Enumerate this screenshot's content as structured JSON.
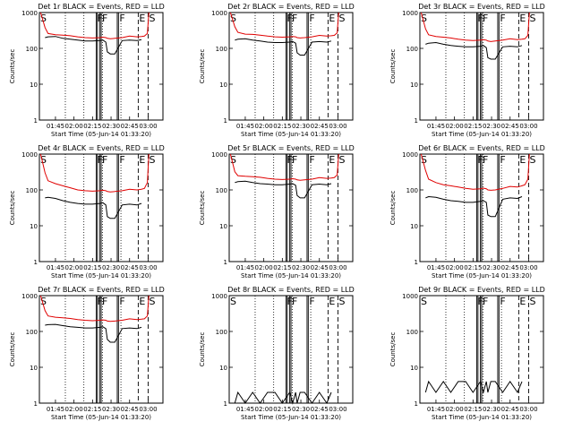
{
  "window": {
    "background": "#ffffff"
  },
  "colors": {
    "events": "#000000",
    "lld": "#e00000",
    "frame": "#000000"
  },
  "chart_data": [
    {
      "type": "line",
      "title": "Det 1r BLACK = Events, RED = LLD",
      "xlabel": "Start Time (05-Jun-14 01:33:20)",
      "ylabel": "Counts/sec",
      "x_ticks": [
        "01:45",
        "02:00",
        "02:15",
        "02:30",
        "02:45",
        "03:00"
      ],
      "y_ticks": [
        "1",
        "10",
        "100",
        "1000"
      ],
      "ylim": [
        1,
        1000
      ],
      "y_scale": "log",
      "x": [
        0,
        3,
        5,
        10,
        15,
        20,
        25,
        30,
        35,
        40,
        42,
        44,
        45,
        47,
        50,
        55,
        60,
        65,
        68,
        70,
        72,
        73
      ],
      "series": [
        {
          "name": "Events",
          "color": "#000000",
          "values": [
            null,
            200,
            210,
            215,
            190,
            180,
            170,
            160,
            160,
            165,
            170,
            150,
            80,
            70,
            70,
            165,
            170,
            165,
            175,
            null,
            null,
            null
          ]
        },
        {
          "name": "LLD",
          "color": "#e00000",
          "values": [
            1000,
            380,
            260,
            240,
            235,
            225,
            210,
            200,
            195,
            200,
            205,
            200,
            190,
            185,
            190,
            200,
            220,
            210,
            215,
            220,
            260,
            1000
          ]
        }
      ],
      "markers": [
        {
          "label": "S",
          "style": "dashed"
        },
        {
          "label": "F",
          "style": "solid"
        },
        {
          "label": "F",
          "style": "solid"
        },
        {
          "label": "F",
          "style": "solid"
        },
        {
          "label": "E",
          "style": "dashed"
        },
        {
          "label": "S",
          "style": "dashed"
        }
      ]
    },
    {
      "type": "line",
      "title": "Det 2r BLACK = Events, RED = LLD",
      "xlabel": "Start Time (05-Jun-14 01:33:20)",
      "ylabel": "Counts/sec",
      "x_ticks": [
        "01:45",
        "02:00",
        "02:15",
        "02:30",
        "02:45",
        "03:00"
      ],
      "y_ticks": [
        "1",
        "10",
        "100",
        "1000"
      ],
      "ylim": [
        1,
        1000
      ],
      "y_scale": "log",
      "x": [
        0,
        3,
        5,
        10,
        15,
        20,
        25,
        30,
        35,
        40,
        42,
        44,
        45,
        47,
        50,
        55,
        60,
        65,
        68,
        70,
        72,
        73
      ],
      "series": [
        {
          "name": "Events",
          "color": "#000000",
          "values": [
            null,
            170,
            180,
            185,
            170,
            160,
            150,
            145,
            145,
            150,
            155,
            140,
            75,
            65,
            65,
            150,
            155,
            150,
            160,
            null,
            null,
            null
          ]
        },
        {
          "name": "LLD",
          "color": "#e00000",
          "values": [
            1000,
            400,
            280,
            250,
            245,
            235,
            220,
            210,
            205,
            210,
            215,
            210,
            200,
            195,
            200,
            210,
            230,
            220,
            225,
            230,
            270,
            1000
          ]
        }
      ],
      "markers": [
        {
          "label": "S",
          "style": "dashed"
        },
        {
          "label": "F",
          "style": "solid"
        },
        {
          "label": "F",
          "style": "solid"
        },
        {
          "label": "F",
          "style": "solid"
        },
        {
          "label": "E",
          "style": "dashed"
        },
        {
          "label": "S",
          "style": "dashed"
        }
      ]
    },
    {
      "type": "line",
      "title": "Det 3r BLACK = Events, RED = LLD",
      "xlabel": "Start Time (05-Jun-14 01:33:20)",
      "ylabel": "Counts/sec",
      "x_ticks": [
        "01:45",
        "02:00",
        "02:15",
        "02:30",
        "02:45",
        "03:00"
      ],
      "y_ticks": [
        "1",
        "10",
        "100",
        "1000"
      ],
      "ylim": [
        1,
        1000
      ],
      "y_scale": "log",
      "x": [
        0,
        3,
        5,
        10,
        15,
        20,
        25,
        30,
        35,
        40,
        42,
        44,
        45,
        47,
        50,
        55,
        60,
        65,
        68,
        70,
        72,
        73
      ],
      "series": [
        {
          "name": "Events",
          "color": "#000000",
          "values": [
            null,
            130,
            140,
            145,
            130,
            120,
            115,
            110,
            110,
            115,
            120,
            105,
            55,
            50,
            50,
            110,
            115,
            110,
            120,
            null,
            null,
            null
          ]
        },
        {
          "name": "LLD",
          "color": "#e00000",
          "values": [
            1000,
            350,
            240,
            215,
            205,
            195,
            180,
            170,
            165,
            170,
            175,
            170,
            160,
            155,
            160,
            170,
            185,
            175,
            180,
            185,
            230,
            1000
          ]
        }
      ],
      "markers": [
        {
          "label": "S",
          "style": "dashed"
        },
        {
          "label": "F",
          "style": "solid"
        },
        {
          "label": "F",
          "style": "solid"
        },
        {
          "label": "F",
          "style": "solid"
        },
        {
          "label": "E",
          "style": "dashed"
        },
        {
          "label": "S",
          "style": "dashed"
        }
      ]
    },
    {
      "type": "line",
      "title": "Det 4r BLACK = Events, RED = LLD",
      "xlabel": "Start Time (05-Jun-14 01:33:20)",
      "ylabel": "Counts/sec",
      "x_ticks": [
        "01:45",
        "02:00",
        "02:15",
        "02:30",
        "02:45",
        "03:00"
      ],
      "y_ticks": [
        "1",
        "10",
        "100",
        "1000"
      ],
      "ylim": [
        1,
        1000
      ],
      "y_scale": "log",
      "x": [
        0,
        3,
        5,
        10,
        15,
        20,
        25,
        30,
        35,
        40,
        42,
        44,
        45,
        47,
        50,
        55,
        60,
        65,
        68,
        70,
        72,
        73
      ],
      "series": [
        {
          "name": "Events",
          "color": "#000000",
          "values": [
            null,
            60,
            62,
            58,
            50,
            45,
            42,
            40,
            40,
            42,
            44,
            38,
            18,
            16,
            16,
            38,
            40,
            38,
            42,
            null,
            null,
            null
          ]
        },
        {
          "name": "LLD",
          "color": "#e00000",
          "values": [
            1000,
            300,
            180,
            150,
            130,
            115,
            100,
            95,
            92,
            95,
            98,
            95,
            90,
            88,
            90,
            95,
            105,
            100,
            105,
            110,
            160,
            1000
          ]
        }
      ],
      "markers": [
        {
          "label": "S",
          "style": "dashed"
        },
        {
          "label": "F",
          "style": "solid"
        },
        {
          "label": "F",
          "style": "solid"
        },
        {
          "label": "F",
          "style": "solid"
        },
        {
          "label": "E",
          "style": "dashed"
        },
        {
          "label": "S",
          "style": "dashed"
        }
      ]
    },
    {
      "type": "line",
      "title": "Det 5r BLACK = Events, RED = LLD",
      "xlabel": "Start Time (05-Jun-14 01:33:20)",
      "ylabel": "Counts/sec",
      "x_ticks": [
        "01:45",
        "02:00",
        "02:15",
        "02:30",
        "02:45",
        "03:00"
      ],
      "y_ticks": [
        "1",
        "10",
        "100",
        "1000"
      ],
      "ylim": [
        1,
        1000
      ],
      "y_scale": "log",
      "x": [
        0,
        3,
        5,
        10,
        15,
        20,
        25,
        30,
        35,
        40,
        42,
        44,
        45,
        47,
        50,
        55,
        60,
        65,
        68,
        70,
        72,
        73
      ],
      "series": [
        {
          "name": "Events",
          "color": "#000000",
          "values": [
            null,
            160,
            170,
            175,
            160,
            150,
            145,
            140,
            140,
            145,
            150,
            135,
            70,
            60,
            60,
            140,
            145,
            140,
            150,
            null,
            null,
            null
          ]
        },
        {
          "name": "LLD",
          "color": "#e00000",
          "values": [
            1000,
            320,
            250,
            240,
            235,
            225,
            210,
            200,
            195,
            200,
            205,
            200,
            190,
            185,
            190,
            200,
            220,
            210,
            215,
            220,
            260,
            1000
          ]
        }
      ],
      "markers": [
        {
          "label": "S",
          "style": "dashed"
        },
        {
          "label": "F",
          "style": "solid"
        },
        {
          "label": "F",
          "style": "solid"
        },
        {
          "label": "F",
          "style": "solid"
        },
        {
          "label": "E",
          "style": "dashed"
        },
        {
          "label": "S",
          "style": "dashed"
        }
      ]
    },
    {
      "type": "line",
      "title": "Det 6r BLACK = Events, RED = LLD",
      "xlabel": "Start Time (05-Jun-14 01:33:20)",
      "ylabel": "Counts/sec",
      "x_ticks": [
        "01:45",
        "02:00",
        "02:15",
        "02:30",
        "02:45",
        "03:00"
      ],
      "y_ticks": [
        "1",
        "10",
        "100",
        "1000"
      ],
      "ylim": [
        1,
        1000
      ],
      "y_scale": "log",
      "x": [
        0,
        3,
        5,
        10,
        15,
        20,
        25,
        30,
        35,
        40,
        42,
        44,
        45,
        47,
        50,
        55,
        60,
        65,
        68,
        70,
        72,
        73
      ],
      "series": [
        {
          "name": "Events",
          "color": "#000000",
          "values": [
            null,
            60,
            65,
            62,
            55,
            50,
            48,
            45,
            45,
            48,
            50,
            45,
            20,
            18,
            18,
            55,
            60,
            58,
            65,
            null,
            null,
            null
          ]
        },
        {
          "name": "LLD",
          "color": "#e00000",
          "values": [
            1000,
            350,
            200,
            160,
            140,
            130,
            120,
            110,
            105,
            108,
            112,
            108,
            100,
            98,
            100,
            110,
            125,
            120,
            130,
            140,
            200,
            1000
          ]
        }
      ],
      "markers": [
        {
          "label": "S",
          "style": "dashed"
        },
        {
          "label": "F",
          "style": "solid"
        },
        {
          "label": "F",
          "style": "solid"
        },
        {
          "label": "F",
          "style": "solid"
        },
        {
          "label": "E",
          "style": "dashed"
        },
        {
          "label": "S",
          "style": "dashed"
        }
      ]
    },
    {
      "type": "line",
      "title": "Det 7r BLACK = Events, RED = LLD",
      "xlabel": "Start Time (05-Jun-14 01:33:20)",
      "ylabel": "Counts/sec",
      "x_ticks": [
        "01:45",
        "02:00",
        "02:15",
        "02:30",
        "02:45",
        "03:00"
      ],
      "y_ticks": [
        "1",
        "10",
        "100",
        "1000"
      ],
      "ylim": [
        1,
        1000
      ],
      "y_scale": "log",
      "x": [
        0,
        3,
        5,
        10,
        15,
        20,
        25,
        30,
        35,
        40,
        42,
        44,
        45,
        47,
        50,
        55,
        60,
        65,
        68,
        70,
        72,
        73
      ],
      "series": [
        {
          "name": "Events",
          "color": "#000000",
          "values": [
            null,
            150,
            155,
            158,
            145,
            135,
            130,
            125,
            125,
            130,
            135,
            120,
            60,
            50,
            50,
            120,
            125,
            120,
            130,
            null,
            null,
            null
          ]
        },
        {
          "name": "LLD",
          "color": "#e00000",
          "values": [
            1000,
            380,
            270,
            250,
            240,
            230,
            215,
            205,
            200,
            205,
            210,
            205,
            195,
            190,
            195,
            205,
            225,
            215,
            220,
            225,
            270,
            1000
          ]
        }
      ],
      "markers": [
        {
          "label": "S",
          "style": "dashed"
        },
        {
          "label": "F",
          "style": "solid"
        },
        {
          "label": "F",
          "style": "solid"
        },
        {
          "label": "F",
          "style": "solid"
        },
        {
          "label": "E",
          "style": "dashed"
        },
        {
          "label": "S",
          "style": "dashed"
        }
      ]
    },
    {
      "type": "line",
      "title": "Det 8r BLACK = Events, RED = LLD",
      "xlabel": "Start Time (05-Jun-14 01:33:20)",
      "ylabel": "Counts/sec",
      "x_ticks": [
        "01:45",
        "02:00",
        "02:15",
        "02:30",
        "02:45",
        "03:00"
      ],
      "y_ticks": [
        "1",
        "10",
        "100",
        "1000"
      ],
      "ylim": [
        1,
        1000
      ],
      "y_scale": "log",
      "x": [
        0,
        3,
        5,
        10,
        15,
        20,
        25,
        30,
        35,
        40,
        42,
        44,
        45,
        47,
        50,
        55,
        60,
        65,
        68,
        70,
        72,
        73
      ],
      "series": [
        {
          "name": "Events",
          "color": "#000000",
          "values": [
            null,
            1,
            2,
            1,
            2,
            1,
            2,
            2,
            1,
            2,
            1,
            2,
            1,
            2,
            2,
            1,
            2,
            1,
            2,
            null,
            null,
            null
          ]
        }
      ],
      "markers": [
        {
          "label": "S",
          "style": "dashed"
        },
        {
          "label": "F",
          "style": "solid"
        },
        {
          "label": "F",
          "style": "solid"
        },
        {
          "label": "F",
          "style": "solid"
        },
        {
          "label": "E",
          "style": "dashed"
        },
        {
          "label": "S",
          "style": "dashed"
        }
      ]
    },
    {
      "type": "line",
      "title": "Det 9r BLACK = Events, RED = LLD",
      "xlabel": "Start Time (05-Jun-14 01:33:20)",
      "ylabel": "Counts/sec",
      "x_ticks": [
        "01:45",
        "02:00",
        "02:15",
        "02:30",
        "02:45",
        "03:00"
      ],
      "y_ticks": [
        "1",
        "10",
        "100",
        "1000"
      ],
      "ylim": [
        1,
        1000
      ],
      "y_scale": "log",
      "x": [
        0,
        3,
        5,
        10,
        15,
        20,
        25,
        30,
        35,
        40,
        42,
        44,
        45,
        47,
        50,
        55,
        60,
        65,
        68,
        70,
        72,
        73
      ],
      "series": [
        {
          "name": "Events",
          "color": "#000000",
          "values": [
            null,
            2,
            4,
            2,
            4,
            2,
            4,
            4,
            2,
            4,
            2,
            4,
            2,
            4,
            4,
            2,
            4,
            2,
            4,
            null,
            null,
            null
          ]
        }
      ],
      "markers": [
        {
          "label": "S",
          "style": "dashed"
        },
        {
          "label": "F",
          "style": "solid"
        },
        {
          "label": "F",
          "style": "solid"
        },
        {
          "label": "F",
          "style": "solid"
        },
        {
          "label": "E",
          "style": "dashed"
        },
        {
          "label": "S",
          "style": "dashed"
        }
      ]
    }
  ]
}
